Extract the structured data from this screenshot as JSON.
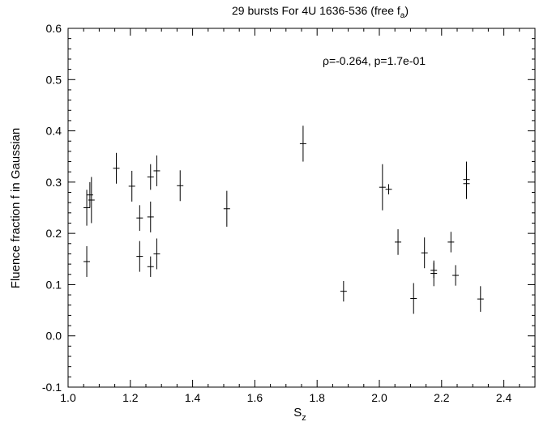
{
  "chart_data": {
    "type": "scatter",
    "title": {
      "main": "29 bursts For 4U 1636-536 (free f",
      "sub": "a",
      "close": ")"
    },
    "xlabel": {
      "main": "S",
      "sub": "z"
    },
    "ylabel": "Fluence fraction f in Gaussian",
    "annotation": "ρ=-0.264, p=1.7e-01",
    "xlim": [
      1.0,
      2.5
    ],
    "ylim": [
      -0.1,
      0.6
    ],
    "x_ticks": [
      "1.0",
      "1.2",
      "1.4",
      "1.6",
      "1.8",
      "2.0",
      "2.2",
      "2.4"
    ],
    "y_ticks": [
      "-0.1",
      "0.0",
      "0.1",
      "0.2",
      "0.3",
      "0.4",
      "0.5",
      "0.6"
    ],
    "grid": false,
    "points": [
      {
        "x": 1.06,
        "y": 0.25,
        "err": 0.035
      },
      {
        "x": 1.06,
        "y": 0.145,
        "err": 0.03
      },
      {
        "x": 1.07,
        "y": 0.275,
        "err": 0.025
      },
      {
        "x": 1.075,
        "y": 0.265,
        "err": 0.045
      },
      {
        "x": 1.155,
        "y": 0.327,
        "err": 0.03
      },
      {
        "x": 1.205,
        "y": 0.292,
        "err": 0.03
      },
      {
        "x": 1.23,
        "y": 0.23,
        "err": 0.025
      },
      {
        "x": 1.23,
        "y": 0.155,
        "err": 0.03
      },
      {
        "x": 1.265,
        "y": 0.31,
        "err": 0.025
      },
      {
        "x": 1.265,
        "y": 0.232,
        "err": 0.03
      },
      {
        "x": 1.265,
        "y": 0.135,
        "err": 0.02
      },
      {
        "x": 1.285,
        "y": 0.322,
        "err": 0.03
      },
      {
        "x": 1.285,
        "y": 0.16,
        "err": 0.03
      },
      {
        "x": 1.36,
        "y": 0.293,
        "err": 0.03
      },
      {
        "x": 1.51,
        "y": 0.248,
        "err": 0.035
      },
      {
        "x": 1.755,
        "y": 0.375,
        "err": 0.035
      },
      {
        "x": 1.885,
        "y": 0.087,
        "err": 0.02
      },
      {
        "x": 2.01,
        "y": 0.29,
        "err": 0.045
      },
      {
        "x": 2.03,
        "y": 0.286,
        "err": 0.01
      },
      {
        "x": 2.06,
        "y": 0.183,
        "err": 0.025
      },
      {
        "x": 2.11,
        "y": 0.073,
        "err": 0.03
      },
      {
        "x": 2.145,
        "y": 0.162,
        "err": 0.03
      },
      {
        "x": 2.175,
        "y": 0.122,
        "err": 0.025
      },
      {
        "x": 2.175,
        "y": 0.128,
        "err": 0.015
      },
      {
        "x": 2.23,
        "y": 0.183,
        "err": 0.02
      },
      {
        "x": 2.245,
        "y": 0.118,
        "err": 0.02
      },
      {
        "x": 2.28,
        "y": 0.305,
        "err": 0.035
      },
      {
        "x": 2.28,
        "y": 0.297,
        "err": 0.03
      },
      {
        "x": 2.325,
        "y": 0.072,
        "err": 0.025
      }
    ]
  }
}
